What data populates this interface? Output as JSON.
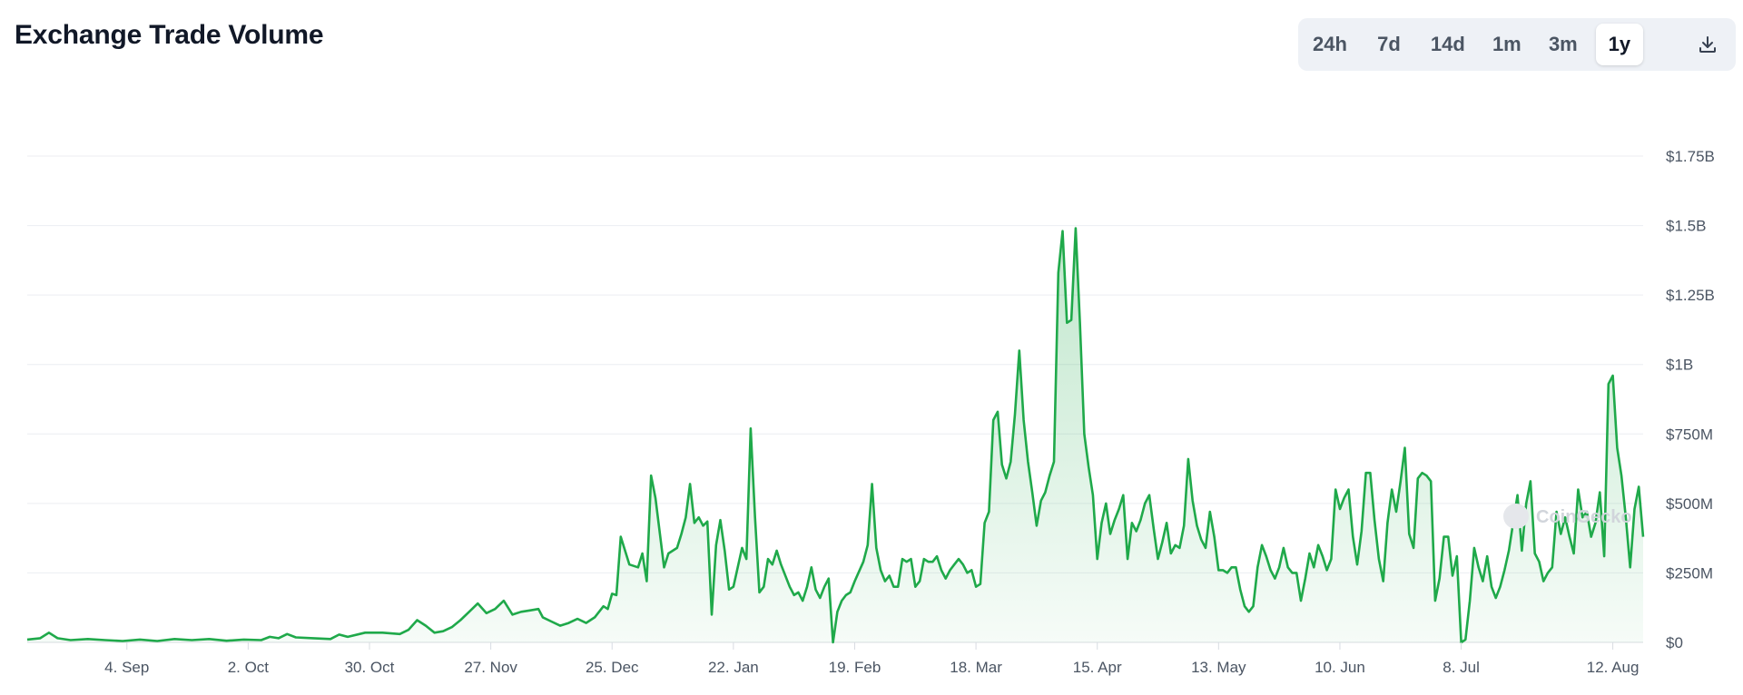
{
  "header": {
    "title": "Exchange Trade Volume"
  },
  "toolbar": {
    "ranges": [
      "24h",
      "7d",
      "14d",
      "1m",
      "3m",
      "1y"
    ],
    "active_range": "1y",
    "download_icon": "download-icon"
  },
  "watermark": "CoinGecko",
  "colors": {
    "line": "#1fa94a",
    "fill_top": "#cdeed6",
    "grid": "#eceef2"
  },
  "chart_data": {
    "type": "area",
    "title": "Exchange Trade Volume",
    "xlabel": "",
    "ylabel": "",
    "ylim": [
      0,
      1750000000
    ],
    "y_ticks": [
      0,
      250000000,
      500000000,
      750000000,
      1000000000,
      1250000000,
      1500000000,
      1750000000
    ],
    "y_tick_labels": [
      "$0",
      "$250M",
      "$500M",
      "$750M",
      "$1B",
      "$1.25B",
      "$1.5B",
      "$1.75B"
    ],
    "x_ticks": [
      {
        "day": 23,
        "label": "4. Sep"
      },
      {
        "day": 51,
        "label": "2. Oct"
      },
      {
        "day": 79,
        "label": "30. Oct"
      },
      {
        "day": 107,
        "label": "27. Nov"
      },
      {
        "day": 135,
        "label": "25. Dec"
      },
      {
        "day": 163,
        "label": "22. Jan"
      },
      {
        "day": 191,
        "label": "19. Feb"
      },
      {
        "day": 219,
        "label": "18. Mar"
      },
      {
        "day": 247,
        "label": "15. Apr"
      },
      {
        "day": 275,
        "label": "13. May"
      },
      {
        "day": 303,
        "label": "10. Jun"
      },
      {
        "day": 331,
        "label": "8. Jul"
      },
      {
        "day": 366,
        "label": "12. Aug"
      }
    ],
    "x_range": [
      0,
      368
    ],
    "grid": true,
    "legend": "none",
    "series": [
      {
        "points": [
          [
            0,
            10000000
          ],
          [
            3,
            15000000
          ],
          [
            5,
            35000000
          ],
          [
            7,
            15000000
          ],
          [
            10,
            8000000
          ],
          [
            14,
            12000000
          ],
          [
            18,
            8000000
          ],
          [
            22,
            5000000
          ],
          [
            26,
            10000000
          ],
          [
            30,
            5000000
          ],
          [
            34,
            12000000
          ],
          [
            38,
            8000000
          ],
          [
            42,
            12000000
          ],
          [
            46,
            6000000
          ],
          [
            50,
            10000000
          ],
          [
            54,
            8000000
          ],
          [
            56,
            20000000
          ],
          [
            58,
            15000000
          ],
          [
            60,
            30000000
          ],
          [
            62,
            18000000
          ],
          [
            66,
            15000000
          ],
          [
            70,
            12000000
          ],
          [
            72,
            28000000
          ],
          [
            74,
            20000000
          ],
          [
            78,
            35000000
          ],
          [
            82,
            35000000
          ],
          [
            86,
            30000000
          ],
          [
            88,
            45000000
          ],
          [
            90,
            80000000
          ],
          [
            92,
            60000000
          ],
          [
            94,
            35000000
          ],
          [
            96,
            40000000
          ],
          [
            98,
            55000000
          ],
          [
            100,
            80000000
          ],
          [
            102,
            110000000
          ],
          [
            104,
            140000000
          ],
          [
            106,
            105000000
          ],
          [
            108,
            120000000
          ],
          [
            110,
            150000000
          ],
          [
            112,
            100000000
          ],
          [
            114,
            110000000
          ],
          [
            116,
            115000000
          ],
          [
            118,
            120000000
          ],
          [
            119,
            90000000
          ],
          [
            121,
            75000000
          ],
          [
            123,
            60000000
          ],
          [
            125,
            70000000
          ],
          [
            127,
            85000000
          ],
          [
            129,
            70000000
          ],
          [
            131,
            90000000
          ],
          [
            133,
            130000000
          ],
          [
            134,
            120000000
          ],
          [
            135,
            175000000
          ],
          [
            136,
            170000000
          ],
          [
            137,
            380000000
          ],
          [
            139,
            280000000
          ],
          [
            141,
            270000000
          ],
          [
            142,
            320000000
          ],
          [
            143,
            220000000
          ],
          [
            144,
            600000000
          ],
          [
            145,
            520000000
          ],
          [
            147,
            270000000
          ],
          [
            148,
            320000000
          ],
          [
            150,
            340000000
          ],
          [
            151,
            390000000
          ],
          [
            152,
            450000000
          ],
          [
            153,
            570000000
          ],
          [
            154,
            430000000
          ],
          [
            155,
            450000000
          ],
          [
            156,
            420000000
          ],
          [
            157,
            435000000
          ],
          [
            158,
            100000000
          ],
          [
            159,
            350000000
          ],
          [
            160,
            440000000
          ],
          [
            161,
            330000000
          ],
          [
            162,
            190000000
          ],
          [
            163,
            200000000
          ],
          [
            165,
            340000000
          ],
          [
            166,
            300000000
          ],
          [
            167,
            770000000
          ],
          [
            168,
            450000000
          ],
          [
            169,
            180000000
          ],
          [
            170,
            200000000
          ],
          [
            171,
            300000000
          ],
          [
            172,
            280000000
          ],
          [
            173,
            330000000
          ],
          [
            174,
            280000000
          ],
          [
            176,
            200000000
          ],
          [
            177,
            170000000
          ],
          [
            178,
            180000000
          ],
          [
            179,
            150000000
          ],
          [
            180,
            200000000
          ],
          [
            181,
            270000000
          ],
          [
            182,
            190000000
          ],
          [
            183,
            160000000
          ],
          [
            184,
            200000000
          ],
          [
            185,
            230000000
          ],
          [
            186,
            0
          ],
          [
            187,
            110000000
          ],
          [
            188,
            150000000
          ],
          [
            189,
            170000000
          ],
          [
            190,
            180000000
          ],
          [
            191,
            220000000
          ],
          [
            193,
            290000000
          ],
          [
            194,
            350000000
          ],
          [
            195,
            570000000
          ],
          [
            196,
            340000000
          ],
          [
            197,
            260000000
          ],
          [
            198,
            220000000
          ],
          [
            199,
            240000000
          ],
          [
            200,
            200000000
          ],
          [
            201,
            200000000
          ],
          [
            202,
            300000000
          ],
          [
            203,
            290000000
          ],
          [
            204,
            300000000
          ],
          [
            205,
            200000000
          ],
          [
            206,
            220000000
          ],
          [
            207,
            300000000
          ],
          [
            208,
            290000000
          ],
          [
            209,
            290000000
          ],
          [
            210,
            310000000
          ],
          [
            211,
            260000000
          ],
          [
            212,
            230000000
          ],
          [
            213,
            260000000
          ],
          [
            214,
            280000000
          ],
          [
            215,
            300000000
          ],
          [
            216,
            280000000
          ],
          [
            217,
            250000000
          ],
          [
            218,
            260000000
          ],
          [
            219,
            200000000
          ],
          [
            220,
            210000000
          ],
          [
            221,
            430000000
          ],
          [
            222,
            470000000
          ],
          [
            223,
            800000000
          ],
          [
            224,
            830000000
          ],
          [
            225,
            640000000
          ],
          [
            226,
            590000000
          ],
          [
            227,
            650000000
          ],
          [
            228,
            820000000
          ],
          [
            229,
            1050000000
          ],
          [
            230,
            800000000
          ],
          [
            231,
            650000000
          ],
          [
            232,
            540000000
          ],
          [
            233,
            420000000
          ],
          [
            234,
            510000000
          ],
          [
            235,
            540000000
          ],
          [
            236,
            600000000
          ],
          [
            237,
            650000000
          ],
          [
            238,
            1330000000
          ],
          [
            239,
            1480000000
          ],
          [
            240,
            1150000000
          ],
          [
            241,
            1160000000
          ],
          [
            242,
            1490000000
          ],
          [
            243,
            1150000000
          ],
          [
            244,
            750000000
          ],
          [
            245,
            630000000
          ],
          [
            246,
            530000000
          ],
          [
            247,
            300000000
          ],
          [
            248,
            430000000
          ],
          [
            249,
            500000000
          ],
          [
            250,
            390000000
          ],
          [
            251,
            440000000
          ],
          [
            252,
            480000000
          ],
          [
            253,
            530000000
          ],
          [
            254,
            300000000
          ],
          [
            255,
            430000000
          ],
          [
            256,
            400000000
          ],
          [
            257,
            440000000
          ],
          [
            258,
            500000000
          ],
          [
            259,
            530000000
          ],
          [
            260,
            410000000
          ],
          [
            261,
            300000000
          ],
          [
            262,
            360000000
          ],
          [
            263,
            430000000
          ],
          [
            264,
            320000000
          ],
          [
            265,
            350000000
          ],
          [
            266,
            340000000
          ],
          [
            267,
            420000000
          ],
          [
            268,
            660000000
          ],
          [
            269,
            510000000
          ],
          [
            270,
            420000000
          ],
          [
            271,
            370000000
          ],
          [
            272,
            340000000
          ],
          [
            273,
            470000000
          ],
          [
            274,
            380000000
          ],
          [
            275,
            260000000
          ],
          [
            276,
            260000000
          ],
          [
            277,
            250000000
          ],
          [
            278,
            270000000
          ],
          [
            279,
            270000000
          ],
          [
            280,
            190000000
          ],
          [
            281,
            130000000
          ],
          [
            282,
            110000000
          ],
          [
            283,
            130000000
          ],
          [
            284,
            270000000
          ],
          [
            285,
            350000000
          ],
          [
            286,
            310000000
          ],
          [
            287,
            260000000
          ],
          [
            288,
            230000000
          ],
          [
            289,
            270000000
          ],
          [
            290,
            340000000
          ],
          [
            291,
            270000000
          ],
          [
            292,
            250000000
          ],
          [
            293,
            250000000
          ],
          [
            294,
            150000000
          ],
          [
            295,
            230000000
          ],
          [
            296,
            320000000
          ],
          [
            297,
            270000000
          ],
          [
            298,
            350000000
          ],
          [
            299,
            310000000
          ],
          [
            300,
            260000000
          ],
          [
            301,
            300000000
          ],
          [
            302,
            550000000
          ],
          [
            303,
            480000000
          ],
          [
            304,
            520000000
          ],
          [
            305,
            550000000
          ],
          [
            306,
            380000000
          ],
          [
            307,
            280000000
          ],
          [
            308,
            400000000
          ],
          [
            309,
            610000000
          ],
          [
            310,
            610000000
          ],
          [
            311,
            440000000
          ],
          [
            312,
            300000000
          ],
          [
            313,
            220000000
          ],
          [
            314,
            430000000
          ],
          [
            315,
            550000000
          ],
          [
            316,
            470000000
          ],
          [
            317,
            580000000
          ],
          [
            318,
            700000000
          ],
          [
            319,
            390000000
          ],
          [
            320,
            340000000
          ],
          [
            321,
            590000000
          ],
          [
            322,
            610000000
          ],
          [
            323,
            600000000
          ],
          [
            324,
            580000000
          ],
          [
            325,
            150000000
          ],
          [
            326,
            230000000
          ],
          [
            327,
            380000000
          ],
          [
            328,
            380000000
          ],
          [
            329,
            240000000
          ],
          [
            330,
            310000000
          ],
          [
            331,
            0
          ],
          [
            332,
            10000000
          ],
          [
            333,
            150000000
          ],
          [
            334,
            340000000
          ],
          [
            335,
            270000000
          ],
          [
            336,
            220000000
          ],
          [
            337,
            310000000
          ],
          [
            338,
            200000000
          ],
          [
            339,
            160000000
          ],
          [
            340,
            200000000
          ],
          [
            341,
            260000000
          ],
          [
            342,
            330000000
          ],
          [
            343,
            430000000
          ],
          [
            344,
            530000000
          ],
          [
            345,
            330000000
          ],
          [
            346,
            500000000
          ],
          [
            347,
            580000000
          ],
          [
            348,
            320000000
          ],
          [
            349,
            290000000
          ],
          [
            350,
            220000000
          ],
          [
            351,
            250000000
          ],
          [
            352,
            270000000
          ],
          [
            353,
            470000000
          ],
          [
            354,
            390000000
          ],
          [
            355,
            450000000
          ],
          [
            356,
            380000000
          ],
          [
            357,
            320000000
          ],
          [
            358,
            550000000
          ],
          [
            359,
            450000000
          ],
          [
            360,
            470000000
          ],
          [
            361,
            380000000
          ],
          [
            362,
            430000000
          ],
          [
            363,
            540000000
          ],
          [
            364,
            310000000
          ],
          [
            365,
            930000000
          ],
          [
            366,
            960000000
          ],
          [
            367,
            700000000
          ],
          [
            368,
            600000000
          ],
          [
            369,
            450000000
          ],
          [
            370,
            270000000
          ],
          [
            371,
            480000000
          ],
          [
            372,
            560000000
          ],
          [
            373,
            380000000
          ]
        ]
      }
    ]
  }
}
